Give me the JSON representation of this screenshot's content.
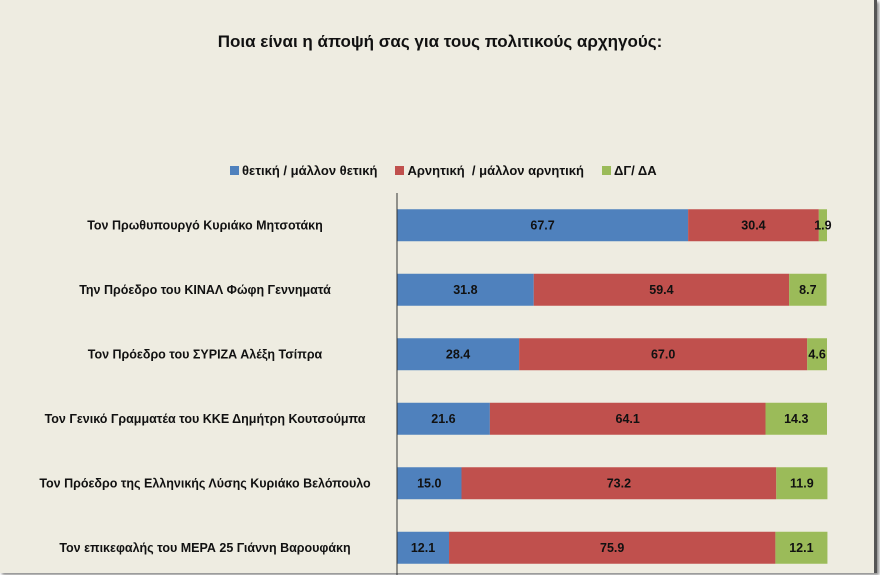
{
  "chart_data": {
    "type": "bar",
    "stacked": true,
    "orientation": "horizontal",
    "title": "Ποια είναι η άποψή σας για τους πολιτικούς αρχηγούς:",
    "xlim": [
      0,
      100
    ],
    "legend_position": "top",
    "categories": [
      "Τον Πρωθυπουργό Κυριάκο Μητσοτάκη",
      "Την Πρόεδρο του ΚΙΝΑΛ Φώφη Γεννηματά",
      "Τον Πρόεδρο του ΣΥΡΙΖΑ Αλέξη Τσίπρα",
      "Τον Γενικό Γραμματέα του ΚΚΕ Δημήτρη Κουτσούμπα",
      "Τον Πρόεδρο της Ελληνικής Λύσης Κυριάκο Βελόπουλο",
      "Τον επικεφαλής του ΜΕΡΑ 25 Γιάννη Βαρουφάκη"
    ],
    "series": [
      {
        "name": "θετική / μάλλον θετική",
        "color": "#4F81BD",
        "values": [
          67.7,
          31.8,
          28.4,
          21.6,
          15.0,
          12.1
        ]
      },
      {
        "name": "Αρνητική  / μάλλον αρνητική",
        "color": "#C0504D",
        "values": [
          30.4,
          59.4,
          67.0,
          64.1,
          73.2,
          75.9
        ]
      },
      {
        "name": "ΔΓ/ ΔΑ",
        "color": "#9BBB59",
        "values": [
          1.9,
          8.7,
          4.6,
          14.3,
          11.9,
          12.1
        ]
      }
    ]
  }
}
